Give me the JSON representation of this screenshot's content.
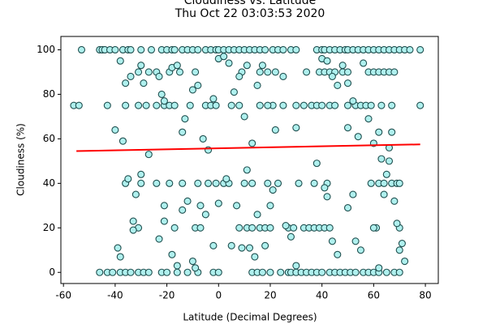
{
  "chart_data": {
    "type": "scatter",
    "title": "Cloudiness vs. Latitude",
    "subtitle": "Thu Oct 22 03:03:53 2020",
    "x_label": "Latitude (Decimal Degrees)",
    "y_label": "Cloudiness (%)",
    "xlim": [
      -61,
      85
    ],
    "ylim": [
      -5,
      106
    ],
    "xticks": [
      -60,
      -40,
      -20,
      0,
      20,
      40,
      60,
      80
    ],
    "yticks": [
      0,
      20,
      40,
      60,
      80,
      100
    ],
    "marker_fill": "#aff0ee",
    "marker_edge": "#1f4f4f",
    "x": [
      -53,
      -46,
      -45,
      -44,
      -42,
      -40,
      -37,
      -35,
      -34,
      -30,
      -26,
      -22,
      -20,
      -18,
      -17,
      -14,
      -12,
      -10,
      -8,
      -5,
      -3,
      -1,
      0,
      2,
      4,
      6,
      8,
      10,
      12,
      14,
      16,
      18,
      21,
      23,
      25,
      28,
      30,
      38,
      40,
      41,
      43,
      45,
      47,
      49,
      50,
      52,
      54,
      56,
      58,
      60,
      62,
      64,
      66,
      68,
      70,
      72,
      74,
      78,
      -46,
      -43,
      -41,
      -38,
      -36,
      -34,
      -31,
      -29,
      -27,
      -22,
      -20,
      -16,
      -12,
      -8,
      -2,
      0,
      13,
      15,
      17,
      20,
      24,
      27,
      28,
      30,
      32,
      34,
      36,
      38,
      40,
      43,
      45,
      47,
      49,
      51,
      53,
      56,
      58,
      60,
      62,
      65,
      68,
      70,
      -56,
      -54,
      -43,
      -36,
      -31,
      -28,
      -24,
      -21,
      -19,
      -17,
      -11,
      -5,
      -3,
      -1,
      5,
      8,
      16,
      21,
      25,
      30,
      33,
      36,
      38,
      40,
      43,
      45,
      50,
      53,
      55,
      57,
      59,
      63,
      67,
      78,
      -31,
      -27,
      -24,
      -19,
      -15,
      -9,
      9,
      16,
      19,
      22,
      34,
      39,
      41,
      43,
      45,
      48,
      50,
      58,
      60,
      62,
      64,
      66,
      68,
      -36,
      -30,
      -24,
      -19,
      -14,
      -8,
      -4,
      -1,
      2,
      4,
      10,
      13,
      19,
      23,
      31,
      37,
      42,
      59,
      62,
      64,
      67,
      69,
      70,
      -31,
      -17,
      -9,
      -7,
      8,
      11,
      13,
      16,
      18,
      27,
      29,
      33,
      35,
      37,
      39,
      41,
      43,
      61,
      70,
      -38,
      -36,
      -34,
      -30,
      -29,
      -23,
      -22,
      -21,
      -18,
      -16,
      -14,
      -13,
      -10,
      -8,
      -6,
      -4,
      -2,
      0,
      2,
      4,
      6,
      8,
      10,
      11,
      13,
      15,
      17,
      19,
      22,
      25,
      30,
      40,
      42,
      44,
      46,
      48,
      50,
      50,
      52,
      54,
      56,
      58,
      60,
      62,
      63,
      65,
      66,
      67,
      68,
      69,
      71,
      72,
      -40,
      -37,
      -35,
      -33,
      -33,
      -39,
      -38,
      -32,
      -30,
      -27,
      -23,
      -21,
      -21,
      -18,
      -16,
      -14,
      -12,
      -10,
      -9,
      -7,
      -5,
      -2,
      0,
      3,
      5,
      7,
      9,
      11,
      12,
      14,
      15,
      18,
      20,
      20,
      21,
      26,
      28,
      30,
      38,
      41,
      42,
      44,
      46,
      50,
      52,
      53,
      55,
      60,
      62,
      64,
      66,
      70
    ],
    "values": [
      100,
      100,
      100,
      100,
      100,
      100,
      100,
      100,
      100,
      100,
      100,
      100,
      100,
      100,
      100,
      100,
      100,
      100,
      100,
      100,
      100,
      100,
      100,
      100,
      100,
      100,
      100,
      100,
      100,
      100,
      100,
      100,
      100,
      100,
      100,
      100,
      100,
      100,
      100,
      100,
      100,
      100,
      100,
      100,
      100,
      100,
      100,
      100,
      100,
      100,
      100,
      100,
      100,
      100,
      100,
      100,
      100,
      100,
      0,
      0,
      0,
      0,
      0,
      0,
      0,
      0,
      0,
      0,
      0,
      0,
      0,
      0,
      0,
      0,
      0,
      0,
      0,
      0,
      0,
      0,
      0,
      0,
      0,
      0,
      0,
      0,
      0,
      0,
      0,
      0,
      0,
      0,
      0,
      0,
      0,
      0,
      0,
      0,
      0,
      0,
      75,
      75,
      75,
      75,
      75,
      75,
      75,
      75,
      75,
      75,
      75,
      75,
      75,
      75,
      75,
      75,
      75,
      75,
      75,
      75,
      75,
      75,
      75,
      75,
      75,
      75,
      75,
      75,
      75,
      75,
      75,
      75,
      75,
      75,
      90,
      90,
      90,
      90,
      90,
      90,
      90,
      90,
      90,
      90,
      90,
      90,
      90,
      90,
      90,
      90,
      90,
      90,
      90,
      90,
      90,
      90,
      90,
      40,
      40,
      40,
      40,
      40,
      40,
      40,
      40,
      40,
      40,
      40,
      40,
      40,
      40,
      40,
      40,
      40,
      40,
      40,
      40,
      40,
      40,
      40,
      20,
      20,
      20,
      20,
      20,
      20,
      20,
      20,
      20,
      20,
      20,
      20,
      20,
      20,
      20,
      20,
      20,
      20,
      20,
      95,
      85,
      88,
      93,
      85,
      88,
      80,
      77,
      92,
      93,
      63,
      69,
      82,
      84,
      60,
      55,
      78,
      96,
      97,
      94,
      81,
      88,
      70,
      93,
      58,
      84,
      93,
      75,
      64,
      88,
      65,
      96,
      95,
      88,
      84,
      93,
      85,
      65,
      77,
      61,
      94,
      69,
      58,
      63,
      51,
      44,
      56,
      63,
      32,
      22,
      13,
      5,
      64,
      59,
      42,
      23,
      19,
      11,
      7,
      35,
      44,
      53,
      15,
      23,
      30,
      8,
      3,
      28,
      32,
      5,
      2,
      30,
      26,
      12,
      31,
      42,
      12,
      30,
      11,
      46,
      11,
      7,
      26,
      12,
      20,
      30,
      37,
      21,
      16,
      3,
      49,
      38,
      34,
      14,
      8,
      29,
      35,
      14,
      10,
      20,
      2,
      35,
      50,
      10
    ],
    "regression": {
      "x": [
        -55,
        78
      ],
      "y": [
        54.5,
        57.5
      ],
      "color": "#ff0000"
    }
  }
}
